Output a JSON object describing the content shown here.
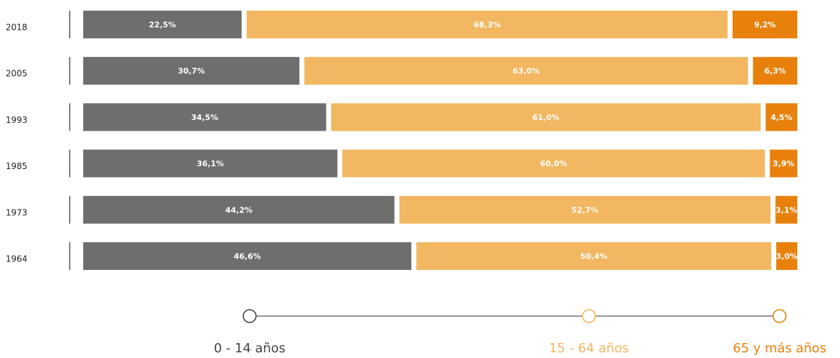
{
  "chart_data": {
    "type": "bar",
    "orientation": "horizontal",
    "stacked": true,
    "categories": [
      "2018",
      "2005",
      "1993",
      "1985",
      "1973",
      "1964"
    ],
    "series": [
      {
        "name": "0 - 14 años",
        "values": [
          22.5,
          30.7,
          34.5,
          36.1,
          44.2,
          46.6
        ],
        "labels": [
          "22,5%",
          "30,7%",
          "34,5%",
          "36,1%",
          "44,2%",
          "46,6%"
        ],
        "color": "#6e6e6e",
        "legend_color": "#444444"
      },
      {
        "name": "15 - 64 años",
        "values": [
          68.3,
          63.0,
          61.0,
          60.0,
          52.7,
          50.4
        ],
        "labels": [
          "68,3%",
          "63,0%",
          "61,0%",
          "60,0%",
          "52,7%",
          "50,4%"
        ],
        "color": "#f2b760",
        "legend_color": "#f2b760"
      },
      {
        "name": "65 y más años",
        "values": [
          9.2,
          6.3,
          4.5,
          3.9,
          3.1,
          3.0
        ],
        "labels": [
          "9,2%",
          "6,3%",
          "4,5%",
          "3,9%",
          "3,1%",
          "3,0%"
        ],
        "color": "#e8810c",
        "legend_color": "#e8810c"
      }
    ],
    "xlim": [
      0,
      100
    ],
    "grid": false,
    "legend": "bottom"
  }
}
